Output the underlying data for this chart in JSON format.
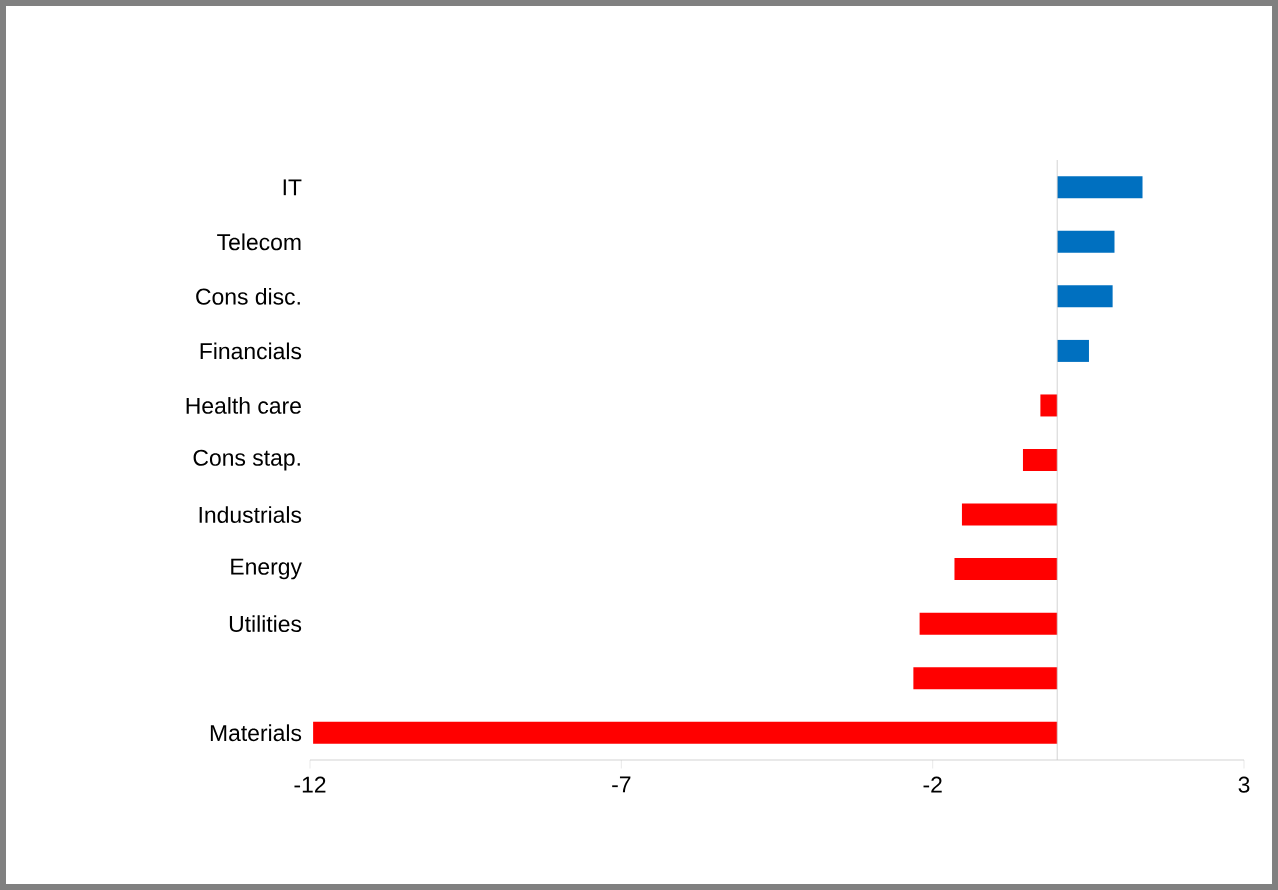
{
  "chart_data": {
    "type": "bar",
    "orientation": "horizontal",
    "categories": [
      "IT",
      "Telecom",
      "Cons disc.",
      "Financials",
      "Health care",
      "Cons stap.",
      "Industrials",
      "Energy",
      "Utilities",
      null,
      "Materials"
    ],
    "values": [
      1.37,
      0.92,
      0.89,
      0.51,
      -0.27,
      -0.55,
      -1.53,
      -1.65,
      -2.21,
      -2.31,
      -11.95
    ],
    "colors": [
      "#0070c0",
      "#0070c0",
      "#0070c0",
      "#0070c0",
      "#ff0000",
      "#ff0000",
      "#ff0000",
      "#ff0000",
      "#ff0000",
      "#ff0000",
      "#ff0000"
    ],
    "xlim": [
      -12,
      3
    ],
    "xticks": [
      -12,
      -7,
      -2,
      3
    ]
  }
}
